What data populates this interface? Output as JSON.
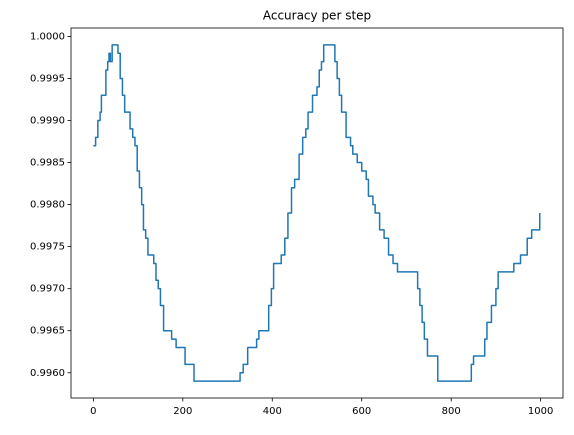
{
  "chart_data": {
    "type": "line",
    "title": "Accuracy per step",
    "x": [
      0,
      5,
      10,
      15,
      18,
      25,
      28,
      32,
      35,
      38,
      42,
      50,
      55,
      60,
      65,
      70,
      78,
      82,
      88,
      93,
      98,
      103,
      108,
      112,
      117,
      122,
      130,
      135,
      140,
      145,
      150,
      157,
      170,
      175,
      185,
      200,
      205,
      215,
      225,
      320,
      328,
      335,
      345,
      360,
      365,
      370,
      385,
      392,
      398,
      403,
      415,
      420,
      428,
      435,
      443,
      450,
      460,
      468,
      475,
      480,
      490,
      500,
      505,
      510,
      515,
      535,
      540,
      545,
      550,
      555,
      565,
      575,
      580,
      590,
      600,
      610,
      615,
      625,
      630,
      640,
      650,
      660,
      670,
      680,
      720,
      725,
      730,
      735,
      740,
      747,
      765,
      770,
      840,
      845,
      850,
      870,
      875,
      880,
      890,
      900,
      905,
      935,
      940,
      950,
      955,
      965,
      970,
      980,
      990,
      998
    ],
    "series": [
      {
        "name": "accuracy",
        "color": "#1f77b4",
        "values": [
          0.9987,
          0.9988,
          0.999,
          0.9991,
          0.9993,
          0.9993,
          0.9996,
          0.9997,
          0.9998,
          0.9997,
          0.9999,
          0.9999,
          0.9998,
          0.9995,
          0.9993,
          0.9991,
          0.9991,
          0.9989,
          0.9988,
          0.9987,
          0.9984,
          0.9982,
          0.998,
          0.9977,
          0.9976,
          0.9974,
          0.9974,
          0.9973,
          0.9971,
          0.997,
          0.9968,
          0.9965,
          0.9965,
          0.9964,
          0.9963,
          0.9963,
          0.9961,
          0.9961,
          0.9959,
          0.9959,
          0.996,
          0.9961,
          0.9963,
          0.9963,
          0.9964,
          0.9965,
          0.9965,
          0.9968,
          0.997,
          0.9973,
          0.9973,
          0.9974,
          0.9976,
          0.9979,
          0.9982,
          0.9983,
          0.9986,
          0.9988,
          0.9989,
          0.9991,
          0.9993,
          0.9994,
          0.9996,
          0.9997,
          0.9999,
          0.9999,
          0.9997,
          0.9995,
          0.9993,
          0.9991,
          0.9988,
          0.9987,
          0.9986,
          0.9985,
          0.9984,
          0.9983,
          0.9981,
          0.998,
          0.9979,
          0.9977,
          0.9976,
          0.9974,
          0.9973,
          0.9972,
          0.9972,
          0.997,
          0.9968,
          0.9966,
          0.9964,
          0.9962,
          0.9962,
          0.9959,
          0.9959,
          0.9961,
          0.9962,
          0.9962,
          0.9964,
          0.9966,
          0.9968,
          0.997,
          0.9972,
          0.9972,
          0.9973,
          0.9973,
          0.9974,
          0.9974,
          0.9976,
          0.9977,
          0.9977,
          0.9979
        ]
      }
    ],
    "xlim": [
      -50,
      1050
    ],
    "xticks": [
      0,
      200,
      400,
      600,
      800,
      1000
    ],
    "ylim": [
      0.9957,
      1.0001
    ],
    "yticks": [
      {
        "value": 0.996,
        "label": "0.9960"
      },
      {
        "value": 0.9965,
        "label": "0.9965"
      },
      {
        "value": 0.997,
        "label": "0.9970"
      },
      {
        "value": 0.9975,
        "label": "0.9975"
      },
      {
        "value": 0.998,
        "label": "0.9980"
      },
      {
        "value": 0.9985,
        "label": "0.9985"
      },
      {
        "value": 0.999,
        "label": "0.9990"
      },
      {
        "value": 0.9995,
        "label": "0.9995"
      },
      {
        "value": 1.0,
        "label": "1.0000"
      }
    ],
    "grid": false
  }
}
